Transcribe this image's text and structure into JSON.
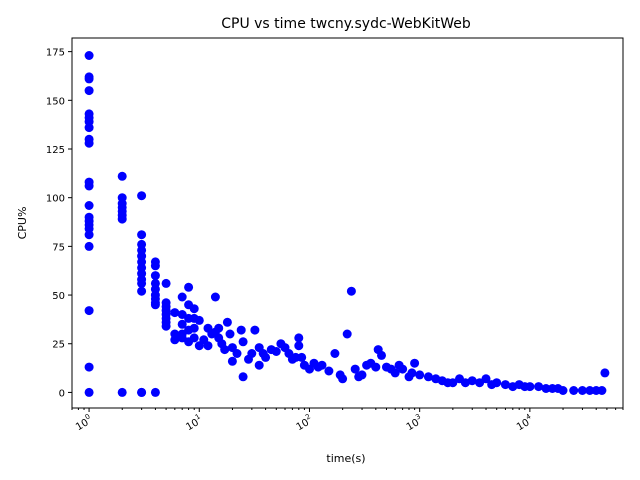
{
  "chart_data": {
    "type": "scatter",
    "title": "CPU vs time twcny.sydc-WebKitWeb",
    "xlabel": "time(s)",
    "ylabel": "CPU%",
    "x_scale": "log",
    "xlim": [
      0.7,
      70000
    ],
    "ylim": [
      -8,
      182
    ],
    "x_ticks": [
      {
        "value": 1,
        "base": "10",
        "exp": "0"
      },
      {
        "value": 10,
        "base": "10",
        "exp": "1"
      },
      {
        "value": 100,
        "base": "10",
        "exp": "2"
      },
      {
        "value": 1000,
        "base": "10",
        "exp": "3"
      },
      {
        "value": 10000,
        "base": "10",
        "exp": "4"
      }
    ],
    "y_ticks": [
      0,
      25,
      50,
      75,
      100,
      125,
      150,
      175
    ],
    "grid": false,
    "legend": "none",
    "marker_color": "#0000ff",
    "series": [
      {
        "x": [
          1,
          1,
          1,
          1,
          1,
          1,
          1,
          1,
          1,
          1,
          1,
          1,
          1,
          1,
          1,
          1,
          1,
          1,
          1,
          1,
          1,
          1,
          2,
          2,
          2,
          2,
          2,
          2,
          2,
          2,
          3,
          3,
          3,
          3,
          3,
          3,
          3,
          3,
          3,
          3,
          3,
          3,
          3,
          4,
          4,
          4,
          4,
          4,
          4,
          4,
          4,
          4,
          4,
          5,
          5,
          5,
          5,
          5,
          5,
          5,
          5,
          6,
          6,
          6,
          7,
          7,
          7,
          7,
          7,
          8,
          8,
          8,
          8,
          8,
          9,
          9,
          9,
          9,
          10,
          10,
          11,
          12,
          12,
          13,
          14,
          14,
          15,
          15,
          16,
          17,
          18,
          19,
          20,
          20,
          22,
          24,
          25,
          25,
          28,
          30,
          32,
          35,
          35,
          38,
          40,
          45,
          50,
          55,
          60,
          65,
          70,
          75,
          80,
          80,
          85,
          90,
          100,
          110,
          120,
          130,
          150,
          170,
          190,
          200,
          220,
          240,
          260,
          280,
          300,
          330,
          360,
          400,
          420,
          450,
          500,
          550,
          600,
          650,
          700,
          800,
          850,
          900,
          1000,
          1200,
          1400,
          1600,
          1800,
          2000,
          2300,
          2600,
          3000,
          3500,
          4000,
          4500,
          5000,
          6000,
          7000,
          8000,
          9000,
          10000,
          12000,
          14000,
          16000,
          18000,
          20000,
          25000,
          30000,
          35000,
          40000,
          45000,
          48000
        ],
        "y": [
          173,
          162,
          161,
          155,
          143,
          141,
          139,
          136,
          130,
          128,
          108,
          106,
          96,
          90,
          88,
          86,
          84,
          81,
          75,
          42,
          13,
          0,
          111,
          100,
          97,
          95,
          93,
          91,
          89,
          0,
          101,
          81,
          76,
          73,
          70,
          67,
          64,
          61,
          58,
          56,
          52,
          0,
          0,
          67,
          65,
          60,
          56,
          53,
          50,
          48,
          46,
          45,
          0,
          56,
          46,
          44,
          42,
          40,
          38,
          36,
          34,
          41,
          30,
          27,
          49,
          40,
          35,
          30,
          28,
          54,
          45,
          38,
          32,
          26,
          43,
          38,
          33,
          28,
          37,
          24,
          27,
          24,
          33,
          30,
          49,
          31,
          33,
          28,
          25,
          22,
          36,
          30,
          23,
          16,
          20,
          32,
          26,
          8,
          17,
          20,
          32,
          23,
          14,
          20,
          18,
          22,
          21,
          25,
          23,
          20,
          17,
          18,
          28,
          24,
          18,
          14,
          12,
          15,
          13,
          14,
          11,
          20,
          9,
          7,
          30,
          52,
          12,
          8,
          9,
          14,
          15,
          13,
          22,
          19,
          13,
          12,
          10,
          14,
          12,
          8,
          10,
          15,
          9,
          8,
          7,
          6,
          5,
          5,
          7,
          5,
          6,
          5,
          7,
          4,
          5,
          4,
          3,
          4,
          3,
          3,
          3,
          2,
          2,
          2,
          1,
          1,
          1,
          1,
          1,
          1,
          10
        ]
      }
    ]
  }
}
